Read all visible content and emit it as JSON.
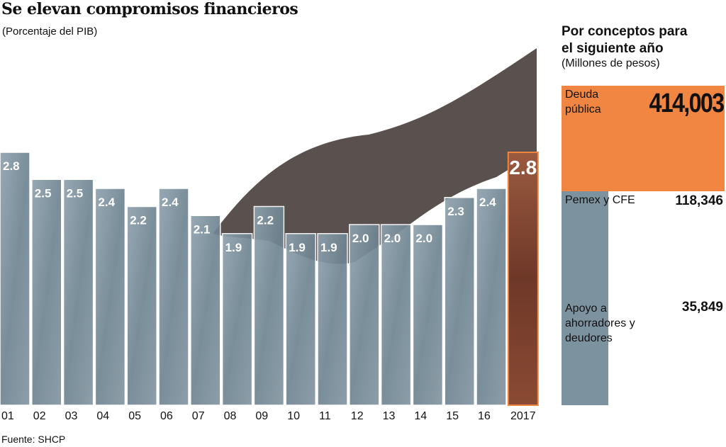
{
  "chart_data": [
    {
      "type": "bar",
      "title": "Se elevan compromisos financieros",
      "subtitle": "(Porcentaje del PIB)",
      "categories": [
        "01",
        "02",
        "03",
        "04",
        "05",
        "06",
        "07",
        "08",
        "09",
        "10",
        "11",
        "12",
        "13",
        "14",
        "15",
        "16",
        "2017"
      ],
      "values": [
        2.8,
        2.5,
        2.5,
        2.4,
        2.2,
        2.4,
        2.1,
        1.9,
        2.2,
        1.9,
        1.9,
        2.0,
        2.0,
        2.0,
        2.3,
        2.4,
        2.8
      ],
      "value_labels": [
        "2.8",
        "2.5",
        "2.5",
        "2.4",
        "2.2",
        "2.4",
        "2.1",
        "1.9",
        "2.2",
        "1.9",
        "1.9",
        "2.0",
        "2.0",
        "2.0",
        "2.3",
        "2.4",
        "2.8"
      ],
      "highlight_index": 16,
      "ylim": [
        0,
        2.8
      ],
      "colors": {
        "bar": "#7d929f",
        "highlight": "#8c4a33",
        "highlight_border": "#ef8540"
      }
    },
    {
      "type": "bar",
      "title": "Por conceptos para el siguiente año",
      "subtitle": "(Millones de pesos)",
      "categories": [
        "Deuda pública",
        "Pemex y CFE",
        "Apoyo a ahorradores y deudores"
      ],
      "values": [
        414003,
        118346,
        35849
      ],
      "value_labels": [
        "414,003",
        "118,346",
        "35,849"
      ],
      "colors": [
        "#f08642",
        "#7d929f",
        "#7d929f"
      ]
    }
  ],
  "source": "Fuente: SHCP",
  "right": {
    "title_line1": "Por conceptos para",
    "title_line2": "el siguiente año"
  }
}
